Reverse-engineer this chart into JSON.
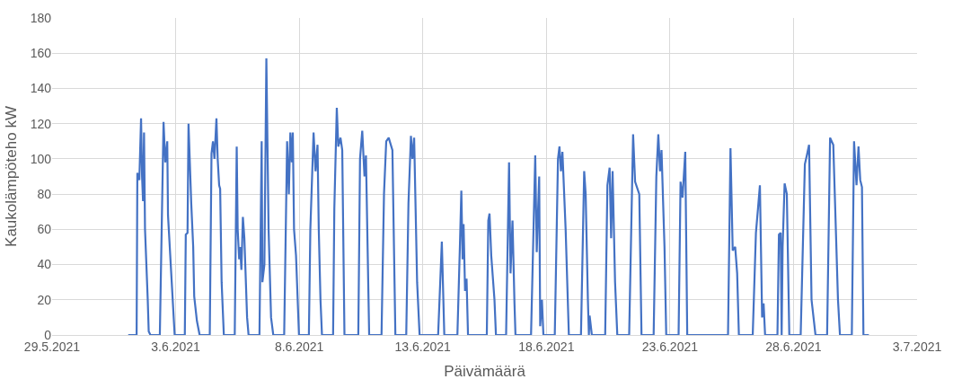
{
  "chart_data": {
    "type": "line",
    "xlabel": "Päivämäärä",
    "ylabel": "Kaukolämpöteho kW",
    "xlim": [
      "2021-05-29",
      "2021-07-03"
    ],
    "xticks": [
      {
        "value": "2021-05-29",
        "label": "29.5.2021"
      },
      {
        "value": "2021-06-03",
        "label": "3.6.2021"
      },
      {
        "value": "2021-06-08",
        "label": "8.6.2021"
      },
      {
        "value": "2021-06-13",
        "label": "13.6.2021"
      },
      {
        "value": "2021-06-18",
        "label": "18.6.2021"
      },
      {
        "value": "2021-06-23",
        "label": "23.6.2021"
      },
      {
        "value": "2021-06-28",
        "label": "28.6.2021"
      },
      {
        "value": "2021-07-03",
        "label": "3.7.2021"
      }
    ],
    "ylim": [
      0,
      180
    ],
    "yticks": [
      0,
      20,
      40,
      60,
      80,
      100,
      120,
      140,
      160,
      180
    ],
    "grid": true,
    "marker": "none",
    "line_style": "solid",
    "series": [
      {
        "color": "#4472c4",
        "x": [
          "2021-06-01T01:55",
          "2021-06-01T10:05",
          "2021-06-01T10:48",
          "2021-06-01T12:43",
          "2021-06-01T14:24",
          "2021-06-01T15:22",
          "2021-06-01T16:19",
          "2021-06-01T17:17",
          "2021-06-01T18:14",
          "2021-06-01T20:53",
          "2021-06-01T21:50",
          "2021-06-01T23:31",
          "2021-06-02T08:38",
          "2021-06-02T12:14",
          "2021-06-02T13:55",
          "2021-06-02T15:50",
          "2021-06-02T16:34",
          "2021-06-02T20:10",
          "2021-06-02T23:02",
          "2021-06-03T08:53",
          "2021-06-03T09:50",
          "2021-06-03T11:31",
          "2021-06-03T12:29",
          "2021-06-03T15:07",
          "2021-06-03T17:02",
          "2021-06-03T18:00",
          "2021-06-03T20:38",
          "2021-06-03T23:17",
          "2021-06-04T09:07",
          "2021-06-04T10:48",
          "2021-06-04T12:14",
          "2021-06-04T13:41",
          "2021-06-04T15:36",
          "2021-06-04T16:48",
          "2021-06-04T18:14",
          "2021-06-04T19:12",
          "2021-06-04T20:38",
          "2021-06-04T22:48",
          "2021-06-05T09:22",
          "2021-06-05T11:17",
          "2021-06-05T12:14",
          "2021-06-05T13:41",
          "2021-06-05T14:38",
          "2021-06-05T15:50",
          "2021-06-05T17:17",
          "2021-06-05T18:43",
          "2021-06-05T21:22",
          "2021-06-05T22:48",
          "2021-06-06T09:22",
          "2021-06-06T11:31",
          "2021-06-06T12:14",
          "2021-06-06T14:10",
          "2021-06-06T16:05",
          "2021-06-06T18:14",
          "2021-06-06T20:38",
          "2021-06-06T22:48",
          "2021-06-07T09:22",
          "2021-06-07T12:14",
          "2021-06-07T13:55",
          "2021-06-07T15:22",
          "2021-06-07T16:48",
          "2021-06-07T17:46",
          "2021-06-07T18:58",
          "2021-06-07T20:53",
          "2021-06-07T23:46",
          "2021-06-08T09:22",
          "2021-06-08T10:48",
          "2021-06-08T13:55",
          "2021-06-08T15:50",
          "2021-06-08T17:46",
          "2021-06-08T18:58",
          "2021-06-08T20:38",
          "2021-06-08T22:05",
          "2021-06-09T08:53",
          "2021-06-09T10:05",
          "2021-06-09T12:29",
          "2021-06-09T13:55",
          "2021-06-09T16:05",
          "2021-06-09T17:46",
          "2021-06-09T19:55",
          "2021-06-10T09:22",
          "2021-06-10T11:02",
          "2021-06-10T13:12",
          "2021-06-10T15:22",
          "2021-06-10T16:48",
          "2021-06-10T19:55",
          "2021-06-11T07:55",
          "2021-06-11T10:19",
          "2021-06-11T12:29",
          "2021-06-11T14:53",
          "2021-06-11T18:29",
          "2021-06-11T21:22",
          "2021-06-12T07:55",
          "2021-06-12T10:05",
          "2021-06-12T12:29",
          "2021-06-12T13:55",
          "2021-06-12T15:36",
          "2021-06-12T18:29",
          "2021-06-12T20:53",
          "2021-06-13T14:53",
          "2021-06-13T18:29",
          "2021-06-13T20:53",
          "2021-06-14T09:36",
          "2021-06-14T12:00",
          "2021-06-14T13:26",
          "2021-06-14T14:38",
          "2021-06-14T15:36",
          "2021-06-14T17:02",
          "2021-06-14T18:29",
          "2021-06-14T19:55",
          "2021-06-15T14:10",
          "2021-06-15T15:36",
          "2021-06-15T16:48",
          "2021-06-15T18:29",
          "2021-06-15T21:36",
          "2021-06-15T23:02",
          "2021-06-16T08:53",
          "2021-06-16T11:46",
          "2021-06-16T13:12",
          "2021-06-16T15:07",
          "2021-06-16T17:02",
          "2021-06-16T18:00",
          "2021-06-17T09:07",
          "2021-06-17T10:19",
          "2021-06-17T13:12",
          "2021-06-17T14:38",
          "2021-06-17T17:02",
          "2021-06-17T18:00",
          "2021-06-17T19:41",
          "2021-06-17T21:07",
          "2021-06-18T08:10",
          "2021-06-18T11:17",
          "2021-06-18T12:43",
          "2021-06-18T14:10",
          "2021-06-18T15:36",
          "2021-06-18T18:43",
          "2021-06-18T21:50",
          "2021-06-19T09:36",
          "2021-06-19T12:43",
          "2021-06-19T14:10",
          "2021-06-19T16:19",
          "2021-06-19T17:17",
          "2021-06-19T18:00",
          "2021-06-19T20:10",
          "2021-06-20T09:07",
          "2021-06-20T11:17",
          "2021-06-20T13:26",
          "2021-06-20T14:53",
          "2021-06-20T16:19",
          "2021-06-20T18:43",
          "2021-06-20T20:53",
          "2021-06-21T08:24",
          "2021-06-21T12:14",
          "2021-06-21T14:10",
          "2021-06-21T18:14",
          "2021-06-21T20:24",
          "2021-06-22T08:10",
          "2021-06-22T10:48",
          "2021-06-22T12:43",
          "2021-06-22T14:24",
          "2021-06-22T15:50",
          "2021-06-22T18:43",
          "2021-06-22T20:24",
          "2021-06-23T08:24",
          "2021-06-23T10:19",
          "2021-06-23T12:14",
          "2021-06-23T14:53",
          "2021-06-23T16:48",
          "2021-06-25T08:24",
          "2021-06-25T10:48",
          "2021-06-25T12:58",
          "2021-06-25T15:22",
          "2021-06-25T17:17",
          "2021-06-25T18:58",
          "2021-06-26T08:24",
          "2021-06-26T11:31",
          "2021-06-26T13:41",
          "2021-06-26T15:22",
          "2021-06-26T17:31",
          "2021-06-26T18:58",
          "2021-06-26T20:24",
          "2021-06-27T08:24",
          "2021-06-27T09:50",
          "2021-06-27T11:31",
          "2021-06-27T12:29",
          "2021-06-27T13:26",
          "2021-06-27T15:22",
          "2021-06-27T17:31",
          "2021-06-27T19:55",
          "2021-06-28T06:58",
          "2021-06-28T11:02",
          "2021-06-28T12:58",
          "2021-06-28T15:07",
          "2021-06-28T17:31",
          "2021-06-28T21:22",
          "2021-06-29T08:38",
          "2021-06-29T11:31",
          "2021-06-29T14:38",
          "2021-06-29T19:12",
          "2021-06-29T21:07",
          "2021-06-30T08:38",
          "2021-06-30T10:48",
          "2021-06-30T13:12",
          "2021-06-30T15:07",
          "2021-06-30T16:48",
          "2021-06-30T18:29",
          "2021-06-30T19:55",
          "2021-07-01T01:12"
        ],
        "values": [
          0,
          0,
          92,
          88,
          123,
          90,
          76,
          115,
          60,
          20,
          2,
          0,
          0,
          121,
          98,
          110,
          68,
          30,
          0,
          0,
          57,
          58,
          120,
          75,
          50,
          22,
          8,
          0,
          0,
          103,
          110,
          100,
          123,
          100,
          85,
          83,
          30,
          0,
          0,
          107,
          60,
          43,
          50,
          37,
          67,
          55,
          10,
          0,
          0,
          110,
          30,
          40,
          157,
          60,
          10,
          0,
          0,
          110,
          80,
          115,
          98,
          115,
          60,
          45,
          0,
          0,
          60,
          115,
          93,
          108,
          60,
          20,
          0,
          0,
          72,
          129,
          107,
          112,
          105,
          0,
          0,
          100,
          116,
          90,
          102,
          0,
          0,
          80,
          110,
          112,
          105,
          0,
          0,
          75,
          113,
          100,
          112,
          30,
          0,
          0,
          53,
          0,
          0,
          50,
          82,
          43,
          63,
          25,
          32,
          0,
          0,
          65,
          69,
          45,
          20,
          0,
          0,
          98,
          35,
          65,
          18,
          0,
          0,
          30,
          102,
          47,
          90,
          5,
          20,
          0,
          0,
          100,
          107,
          93,
          104,
          60,
          0,
          0,
          93,
          80,
          20,
          0,
          11,
          0,
          0,
          85,
          95,
          55,
          93,
          30,
          0,
          0,
          114,
          87,
          80,
          0,
          0,
          90,
          114,
          93,
          105,
          50,
          0,
          0,
          87,
          78,
          104,
          0,
          0,
          106,
          48,
          50,
          35,
          0,
          0,
          58,
          73,
          85,
          10,
          18,
          0,
          0,
          57,
          58,
          0,
          50,
          86,
          80,
          0,
          0,
          97,
          102,
          108,
          20,
          0,
          0,
          112,
          108,
          20,
          0,
          0,
          110,
          85,
          107,
          88,
          84,
          0,
          0
        ]
      }
    ]
  }
}
